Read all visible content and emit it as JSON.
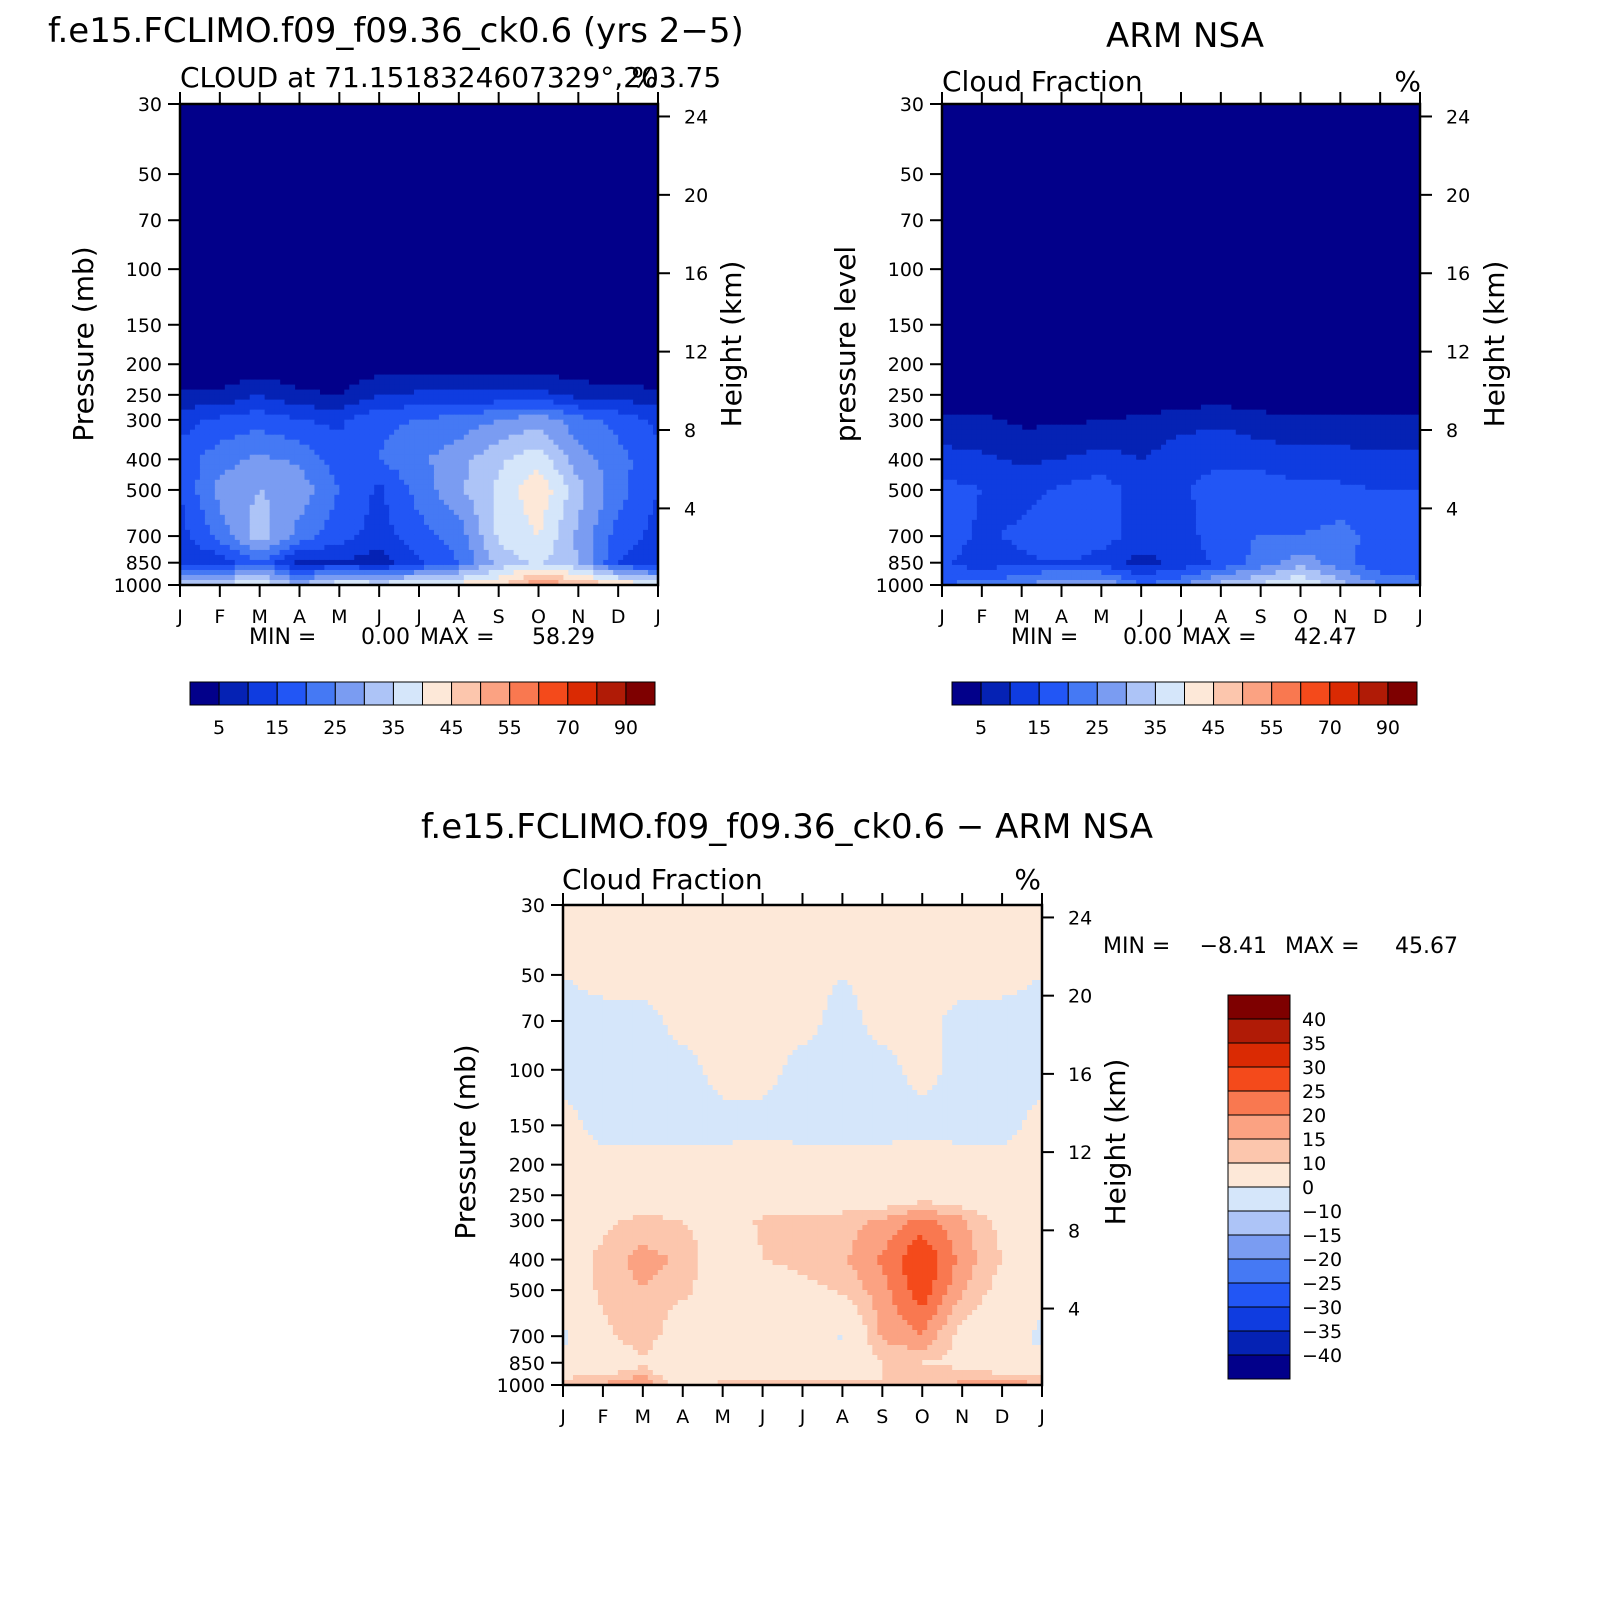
{
  "chart_data": [
    {
      "type": "heatmap",
      "id": "model",
      "title": "f.e15.FCLIMO.f09_f09.36_ck0.6 (yrs 2−5)",
      "subtitle_left": "CLOUD at 71.1518324607329°,203.75",
      "subtitle_right": "%",
      "ylabel_left": "Pressure (mb)",
      "ylabel_right": "Height (km)",
      "x_ticks": [
        "J",
        "F",
        "M",
        "A",
        "M",
        "J",
        "J",
        "A",
        "S",
        "O",
        "N",
        "D",
        "J"
      ],
      "y_ticks_pressure": [
        30,
        50,
        70,
        100,
        150,
        200,
        250,
        300,
        400,
        500,
        700,
        850,
        1000
      ],
      "y_ticks_height": [
        24,
        20,
        16,
        12,
        8,
        4
      ],
      "min_label": "MIN =",
      "min_value": "0.00",
      "max_label": "MAX =",
      "max_value": "58.29",
      "colorbar_orientation": "horizontal",
      "colorbar_labels": [
        "5",
        "15",
        "25",
        "35",
        "45",
        "55",
        "70",
        "90"
      ],
      "levels": [
        5,
        10,
        15,
        20,
        25,
        30,
        35,
        40,
        45,
        50,
        55,
        60,
        70,
        80,
        90
      ],
      "colors": [
        "#02008a",
        "#0522b4",
        "#0f3ce0",
        "#2256f5",
        "#4579f4",
        "#7a9cf2",
        "#adc4f7",
        "#d5e6fa",
        "#fde8d8",
        "#fcc6ad",
        "#fba282",
        "#f97850",
        "#f44a1b",
        "#da2a03",
        "#b01b06",
        "#7e0000"
      ],
      "x": [
        "J",
        "F",
        "M",
        "A",
        "M",
        "J",
        "J",
        "A",
        "S",
        "O",
        "N",
        "D",
        "J"
      ],
      "y": [
        30,
        50,
        70,
        100,
        150,
        200,
        250,
        300,
        400,
        500,
        700,
        850,
        1000
      ],
      "z": [
        [
          0,
          0,
          0,
          0,
          0,
          0,
          0,
          0,
          0,
          0,
          0,
          0,
          0
        ],
        [
          0,
          0,
          0,
          0,
          0,
          0,
          0,
          0,
          0,
          0,
          0,
          0,
          0
        ],
        [
          0,
          0,
          0,
          0,
          0,
          0,
          0,
          0,
          0,
          0,
          0,
          0,
          0
        ],
        [
          0,
          0,
          0,
          0,
          0,
          0,
          0,
          0,
          0,
          0,
          0,
          0,
          0
        ],
        [
          0,
          0,
          0,
          0,
          0,
          0,
          0,
          0,
          0,
          0,
          0,
          0,
          0
        ],
        [
          0,
          0,
          1,
          0,
          0,
          2,
          1,
          1,
          1,
          2,
          1,
          0,
          0
        ],
        [
          6,
          6,
          10,
          6,
          5,
          10,
          11,
          11,
          11,
          12,
          8,
          8,
          6
        ],
        [
          13,
          16,
          18,
          15,
          14,
          19,
          20,
          22,
          25,
          28,
          22,
          18,
          14
        ],
        [
          17,
          23,
          26,
          24,
          17,
          20,
          24,
          28,
          34,
          38,
          27,
          22,
          16
        ],
        [
          15,
          27,
          30,
          28,
          20,
          14,
          22,
          29,
          36,
          44,
          32,
          22,
          15
        ],
        [
          13,
          22,
          33,
          23,
          17,
          13,
          18,
          22,
          36,
          40,
          29,
          18,
          13
        ],
        [
          10,
          12,
          20,
          8,
          10,
          7,
          14,
          20,
          32,
          36,
          30,
          15,
          11
        ],
        [
          34,
          36,
          40,
          30,
          40,
          38,
          40,
          42,
          44,
          55,
          50,
          45,
          40
        ]
      ]
    },
    {
      "type": "heatmap",
      "id": "obs",
      "title": "ARM NSA",
      "subtitle_left": "Cloud Fraction",
      "subtitle_right": "%",
      "ylabel_left": "pressure level",
      "ylabel_right": "Height (km)",
      "x_ticks": [
        "J",
        "F",
        "M",
        "A",
        "M",
        "J",
        "J",
        "A",
        "S",
        "O",
        "N",
        "D",
        "J"
      ],
      "y_ticks_pressure": [
        30,
        50,
        70,
        100,
        150,
        200,
        250,
        300,
        400,
        500,
        700,
        850,
        1000
      ],
      "y_ticks_height": [
        24,
        20,
        16,
        12,
        8,
        4
      ],
      "min_label": "MIN =",
      "min_value": "0.00",
      "max_label": "MAX =",
      "max_value": "42.47",
      "colorbar_orientation": "horizontal",
      "colorbar_labels": [
        "5",
        "15",
        "25",
        "35",
        "45",
        "55",
        "70",
        "90"
      ],
      "levels": [
        5,
        10,
        15,
        20,
        25,
        30,
        35,
        40,
        45,
        50,
        55,
        60,
        70,
        80,
        90
      ],
      "colors": [
        "#02008a",
        "#0522b4",
        "#0f3ce0",
        "#2256f5",
        "#4579f4",
        "#7a9cf2",
        "#adc4f7",
        "#d5e6fa",
        "#fde8d8",
        "#fcc6ad",
        "#fba282",
        "#f97850",
        "#f44a1b",
        "#da2a03",
        "#b01b06",
        "#7e0000"
      ],
      "x": [
        "J",
        "F",
        "M",
        "A",
        "M",
        "J",
        "J",
        "A",
        "S",
        "O",
        "N",
        "D",
        "J"
      ],
      "y": [
        30,
        50,
        70,
        100,
        150,
        200,
        250,
        300,
        400,
        500,
        700,
        850,
        1000
      ],
      "z": [
        [
          0,
          0,
          0,
          0,
          0,
          0,
          0,
          0,
          0,
          0,
          0,
          0,
          0
        ],
        [
          0,
          0,
          0,
          0,
          0,
          0,
          0,
          0,
          0,
          0,
          0,
          0,
          0
        ],
        [
          0,
          0,
          0,
          0,
          0,
          0,
          0,
          0,
          0,
          0,
          0,
          0,
          0
        ],
        [
          0,
          0,
          0,
          0,
          0,
          0,
          0,
          0,
          0,
          0,
          0,
          0,
          0
        ],
        [
          0,
          0,
          0,
          0,
          0,
          0,
          0,
          0,
          0,
          0,
          0,
          0,
          0
        ],
        [
          0,
          0,
          0,
          0,
          0,
          0,
          0,
          0,
          0,
          0,
          0,
          0,
          0
        ],
        [
          0,
          0,
          0,
          0,
          0,
          0,
          1,
          2,
          1,
          0,
          0,
          0,
          0
        ],
        [
          6,
          6,
          4,
          4,
          5,
          6,
          8,
          9,
          7,
          6,
          6,
          6,
          6
        ],
        [
          12,
          11,
          9,
          10,
          12,
          10,
          13,
          14,
          13,
          12,
          12,
          11,
          11
        ],
        [
          17,
          15,
          13,
          16,
          18,
          12,
          14,
          18,
          18,
          16,
          16,
          15,
          15
        ],
        [
          18,
          14,
          16,
          20,
          17,
          13,
          12,
          19,
          20,
          20,
          22,
          18,
          17
        ],
        [
          16,
          12,
          14,
          15,
          13,
          8,
          12,
          16,
          22,
          28,
          22,
          16,
          15
        ],
        [
          20,
          22,
          24,
          30,
          30,
          20,
          24,
          32,
          36,
          40,
          32,
          25,
          22
        ]
      ]
    },
    {
      "type": "heatmap",
      "id": "diff",
      "title": "f.e15.FCLIMO.f09_f09.36_ck0.6 − ARM NSA",
      "subtitle_left": "Cloud Fraction",
      "subtitle_right": "%",
      "ylabel_left": "Pressure (mb)",
      "ylabel_right": "Height (km)",
      "x_ticks": [
        "J",
        "F",
        "M",
        "A",
        "M",
        "J",
        "J",
        "A",
        "S",
        "O",
        "N",
        "D",
        "J"
      ],
      "y_ticks_pressure": [
        30,
        50,
        70,
        100,
        150,
        200,
        250,
        300,
        400,
        500,
        700,
        850,
        1000
      ],
      "y_ticks_height": [
        24,
        20,
        16,
        12,
        8,
        4
      ],
      "min_label": "MIN =",
      "min_value": "−8.41",
      "max_label": "MAX =",
      "max_value": "45.67",
      "colorbar_orientation": "vertical",
      "colorbar_labels": [
        "40",
        "35",
        "30",
        "25",
        "20",
        "15",
        "10",
        "0",
        "−10",
        "−15",
        "−20",
        "−25",
        "−30",
        "−35",
        "−40"
      ],
      "levels": [
        -40,
        -35,
        -30,
        -25,
        -20,
        -15,
        -10,
        0,
        10,
        15,
        20,
        25,
        30,
        35,
        40
      ],
      "colors": [
        "#02008a",
        "#0522b4",
        "#0f3ce0",
        "#2256f5",
        "#4579f4",
        "#7a9cf2",
        "#adc4f7",
        "#d5e6fa",
        "#fde8d8",
        "#fcc6ad",
        "#fba282",
        "#f97850",
        "#f44a1b",
        "#da2a03",
        "#b01b06",
        "#7e0000"
      ],
      "x": [
        "J",
        "F",
        "M",
        "A",
        "M",
        "J",
        "J",
        "A",
        "S",
        "O",
        "N",
        "D",
        "J"
      ],
      "y": [
        30,
        50,
        70,
        100,
        150,
        200,
        250,
        300,
        400,
        500,
        700,
        850,
        1000
      ],
      "z": [
        [
          1,
          1,
          1,
          1,
          1,
          1,
          1,
          1,
          1,
          1,
          1,
          1,
          1
        ],
        [
          0,
          1,
          1,
          1,
          1,
          1,
          1,
          0,
          1,
          1,
          1,
          1,
          0
        ],
        [
          -1,
          -1,
          -1,
          1,
          1,
          1,
          1,
          -1,
          1,
          1,
          -1,
          -1,
          -1
        ],
        [
          -1,
          -1,
          -1,
          -1,
          1,
          1,
          -1,
          -1,
          -1,
          1,
          -1,
          -1,
          -1
        ],
        [
          1,
          -1,
          -1,
          -1,
          -1,
          -1,
          -1,
          -1,
          -1,
          -1,
          -1,
          -1,
          1
        ],
        [
          1,
          1,
          1,
          1,
          1,
          2,
          1,
          1,
          1,
          2,
          1,
          1,
          1
        ],
        [
          2,
          2,
          3,
          2,
          2,
          4,
          3,
          3,
          3,
          6,
          4,
          2,
          2
        ],
        [
          3,
          8,
          12,
          10,
          6,
          11,
          12,
          13,
          16,
          22,
          16,
          8,
          3
        ],
        [
          5,
          12,
          17,
          14,
          5,
          10,
          12,
          14,
          21,
          30,
          18,
          10,
          4
        ],
        [
          2,
          12,
          15,
          12,
          4,
          4,
          8,
          11,
          18,
          28,
          16,
          7,
          1
        ],
        [
          -1,
          8,
          15,
          3,
          2,
          2,
          6,
          -1,
          16,
          20,
          7,
          2,
          -1
        ],
        [
          1,
          2,
          8,
          1,
          5,
          1,
          4,
          6,
          10,
          10,
          8,
          3,
          1
        ],
        [
          14,
          16,
          20,
          4,
          12,
          12,
          12,
          12,
          10,
          14,
          16,
          18,
          16
        ]
      ]
    }
  ]
}
